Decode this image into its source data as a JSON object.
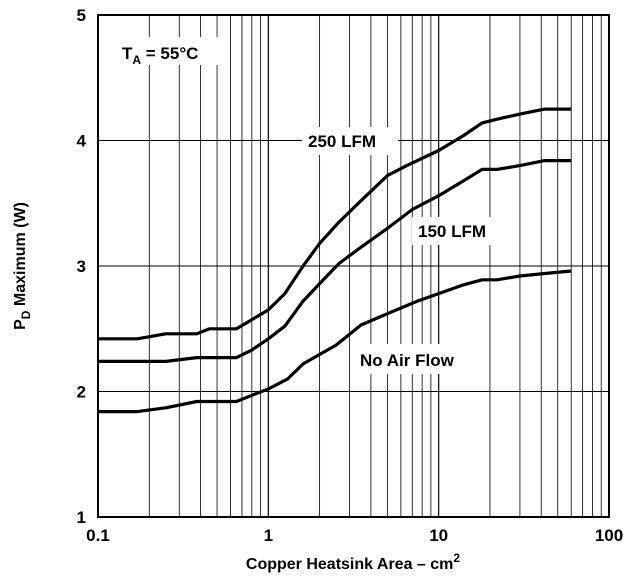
{
  "chart_data": {
    "type": "line",
    "title": "",
    "xlabel": "Copper Heatsink Area – cm",
    "xlabel_superscript": "2",
    "ylabel": "P",
    "ylabel_subscript": "D",
    "ylabel_rest": " Maximum (W)",
    "x_scale": "log",
    "xlim": [
      0.1,
      100
    ],
    "ylim": [
      1,
      5
    ],
    "grid": true,
    "x_ticks": [
      {
        "value": 0.1,
        "label": "0.1"
      },
      {
        "value": 1,
        "label": "1"
      },
      {
        "value": 10,
        "label": "10"
      },
      {
        "value": 100,
        "label": "100"
      }
    ],
    "y_ticks": [
      {
        "value": 1,
        "label": "1"
      },
      {
        "value": 2,
        "label": "2"
      },
      {
        "value": 3,
        "label": "3"
      },
      {
        "value": 4,
        "label": "4"
      },
      {
        "value": 5,
        "label": "5"
      }
    ],
    "series": [
      {
        "name": "250 LFM",
        "points": [
          [
            0.1,
            2.42
          ],
          [
            0.17,
            2.42
          ],
          [
            0.25,
            2.46
          ],
          [
            0.38,
            2.46
          ],
          [
            0.45,
            2.5
          ],
          [
            0.65,
            2.5
          ],
          [
            0.75,
            2.55
          ],
          [
            1.0,
            2.65
          ],
          [
            1.25,
            2.78
          ],
          [
            1.6,
            3.0
          ],
          [
            2.0,
            3.18
          ],
          [
            2.6,
            3.35
          ],
          [
            3.5,
            3.52
          ],
          [
            5.0,
            3.72
          ],
          [
            6.5,
            3.8
          ],
          [
            10,
            3.92
          ],
          [
            14,
            4.04
          ],
          [
            18,
            4.14
          ],
          [
            22,
            4.17
          ],
          [
            30,
            4.21
          ],
          [
            42,
            4.25
          ],
          [
            60,
            4.25
          ]
        ]
      },
      {
        "name": "150 LFM",
        "points": [
          [
            0.1,
            2.24
          ],
          [
            0.25,
            2.24
          ],
          [
            0.38,
            2.27
          ],
          [
            0.65,
            2.27
          ],
          [
            0.8,
            2.33
          ],
          [
            1.0,
            2.42
          ],
          [
            1.25,
            2.52
          ],
          [
            1.6,
            2.72
          ],
          [
            2.0,
            2.86
          ],
          [
            2.6,
            3.02
          ],
          [
            3.5,
            3.15
          ],
          [
            5.0,
            3.3
          ],
          [
            7,
            3.45
          ],
          [
            10,
            3.56
          ],
          [
            14,
            3.68
          ],
          [
            18,
            3.77
          ],
          [
            22,
            3.77
          ],
          [
            30,
            3.8
          ],
          [
            42,
            3.84
          ],
          [
            60,
            3.84
          ]
        ]
      },
      {
        "name": "No Air Flow",
        "points": [
          [
            0.1,
            1.84
          ],
          [
            0.17,
            1.84
          ],
          [
            0.25,
            1.87
          ],
          [
            0.38,
            1.92
          ],
          [
            0.65,
            1.92
          ],
          [
            0.8,
            1.97
          ],
          [
            1.0,
            2.02
          ],
          [
            1.3,
            2.1
          ],
          [
            1.6,
            2.22
          ],
          [
            2.5,
            2.37
          ],
          [
            3.5,
            2.53
          ],
          [
            5.0,
            2.62
          ],
          [
            7.5,
            2.72
          ],
          [
            11,
            2.8
          ],
          [
            14,
            2.85
          ],
          [
            18,
            2.89
          ],
          [
            22,
            2.89
          ],
          [
            30,
            2.92
          ],
          [
            42,
            2.94
          ],
          [
            60,
            2.96
          ]
        ]
      }
    ],
    "annotations": [
      {
        "text": "T",
        "subscript": "A",
        "rest": " = 55°C"
      },
      {
        "text": "250 LFM"
      },
      {
        "text": "150 LFM"
      },
      {
        "text": "No Air Flow"
      }
    ],
    "line_color": "#000000",
    "grid_color": "#000000"
  }
}
